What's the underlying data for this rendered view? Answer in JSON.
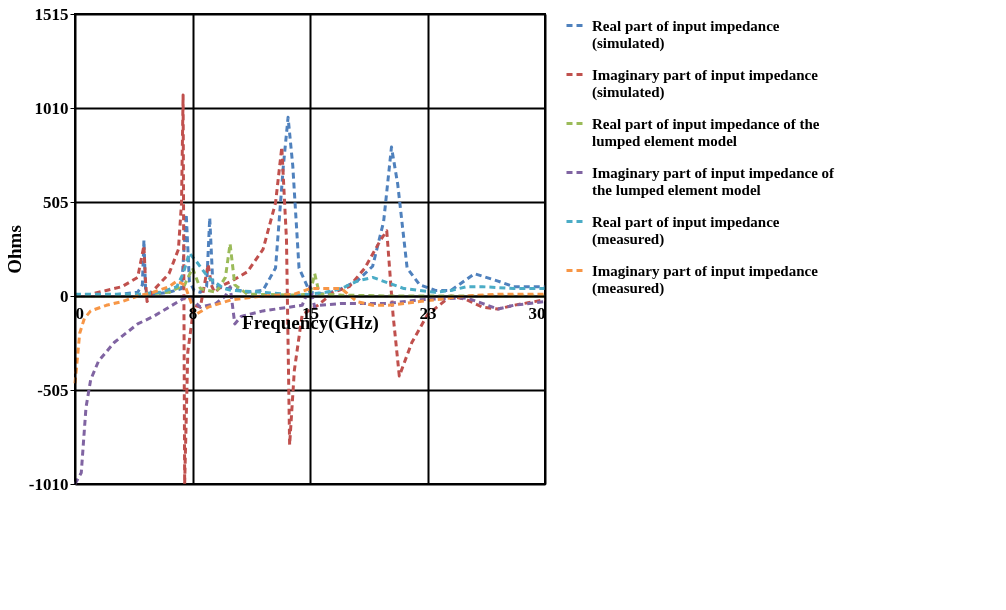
{
  "chart_data": {
    "type": "line",
    "xlabel": "Frequency(GHz)",
    "ylabel": "Ohms",
    "xlim": [
      0,
      30
    ],
    "xticks": [
      0,
      {
        "value": 7.5,
        "label": "8"
      },
      15,
      {
        "value": 22.5,
        "label": "23"
      },
      30
    ],
    "ylim": [
      -1010,
      1515
    ],
    "yticks": [
      -1010,
      -505,
      0,
      505,
      1010,
      1515
    ],
    "grid": true,
    "legend": "right",
    "line_style": "dashed",
    "marker": "none",
    "series": [
      {
        "name": "Real part of input impedance (simulated)",
        "color": "#4f81bd",
        "x": [
          0,
          2,
          4,
          4.3,
          4.4,
          4.5,
          5,
          6,
          6.8,
          7.1,
          7.3,
          7.6,
          8,
          8.4,
          8.6,
          8.8,
          9.5,
          10,
          11,
          12,
          12.8,
          13.3,
          13.6,
          13.9,
          14.3,
          15,
          16,
          17,
          18,
          19,
          19.7,
          20.2,
          20.6,
          21.2,
          22,
          23,
          24,
          25.5,
          27,
          28,
          30
        ],
        "values": [
          0,
          2,
          20,
          60,
          300,
          40,
          10,
          20,
          40,
          440,
          80,
          30,
          20,
          50,
          420,
          60,
          40,
          40,
          20,
          30,
          150,
          700,
          960,
          700,
          150,
          20,
          10,
          40,
          80,
          160,
          400,
          800,
          600,
          150,
          60,
          30,
          30,
          120,
          80,
          50,
          50
        ]
      },
      {
        "name": "Imaginary part of input impedance (simulated)",
        "color": "#c0504d",
        "x": [
          0,
          1,
          2,
          3,
          4,
          4.4,
          4.5,
          4.6,
          5,
          6,
          6.6,
          6.8,
          6.9,
          7.0,
          7.2,
          7.6,
          8,
          8.5,
          8.7,
          8.9,
          9.5,
          10,
          11,
          12,
          12.8,
          13.2,
          13.5,
          13.7,
          14,
          14.5,
          15.5,
          16.5,
          17.5,
          18.5,
          19.5,
          19.9,
          20.3,
          20.7,
          21.5,
          22.5,
          24,
          25,
          26,
          27,
          28,
          30
        ],
        "values": [
          0,
          10,
          30,
          50,
          100,
          270,
          80,
          -30,
          30,
          120,
          250,
          500,
          1080,
          -1010,
          -300,
          -50,
          -60,
          170,
          60,
          20,
          60,
          80,
          130,
          250,
          500,
          800,
          300,
          -800,
          -400,
          -100,
          -50,
          20,
          50,
          150,
          300,
          350,
          -100,
          -430,
          -250,
          -100,
          0,
          -20,
          -60,
          -70,
          -50,
          -20
        ]
      },
      {
        "name": "Real part of input impedance of the lumped element model",
        "color": "#9bbb59",
        "x": [
          0,
          3,
          6,
          7,
          7.5,
          8,
          9,
          9.6,
          9.9,
          10.2,
          11,
          14,
          15,
          15.3,
          15.6,
          17,
          20,
          25,
          30
        ],
        "values": [
          0,
          0,
          20,
          60,
          150,
          40,
          20,
          100,
          280,
          60,
          10,
          5,
          10,
          120,
          10,
          5,
          0,
          0,
          0
        ]
      },
      {
        "name": "Imaginary part of input impedance of the lumped element model",
        "color": "#8064a2",
        "x": [
          0,
          0.4,
          0.7,
          1,
          1.5,
          2.5,
          4,
          5,
          6,
          7.2,
          7.6,
          8,
          9,
          9.6,
          9.9,
          10.2,
          10.6,
          12,
          14.5,
          15,
          15.3,
          15.6,
          17,
          20,
          22,
          25,
          26,
          27,
          28,
          30
        ],
        "values": [
          -1010,
          -950,
          -600,
          -450,
          -350,
          -250,
          -150,
          -110,
          -60,
          0,
          -30,
          -60,
          -40,
          0,
          50,
          -150,
          -110,
          -80,
          -50,
          50,
          -60,
          -50,
          -40,
          -40,
          -20,
          -10,
          -40,
          -70,
          -50,
          -30
        ]
      },
      {
        "name": "Real part of input impedance (measured)",
        "color": "#4bacc6",
        "x": [
          0,
          2,
          4,
          5.5,
          6.5,
          6.9,
          7.3,
          7.8,
          8.5,
          9.5,
          10,
          12,
          14,
          15,
          16,
          17,
          18,
          19,
          20,
          21,
          22,
          23,
          24,
          25,
          26,
          28,
          30
        ],
        "values": [
          10,
          10,
          10,
          20,
          50,
          120,
          230,
          180,
          100,
          40,
          30,
          20,
          5,
          10,
          20,
          40,
          80,
          100,
          70,
          40,
          30,
          20,
          30,
          50,
          50,
          40,
          40
        ]
      },
      {
        "name": "Imaginary part of input impedance (measured)",
        "color": "#f79646",
        "x": [
          0,
          0.3,
          0.6,
          1,
          2,
          3,
          4,
          5,
          6,
          6.5,
          7,
          7.7,
          8.5,
          10,
          12,
          14,
          15,
          16,
          17,
          18,
          19,
          20,
          22,
          24,
          25,
          27,
          30
        ],
        "values": [
          -470,
          -200,
          -120,
          -80,
          -50,
          -30,
          0,
          20,
          50,
          80,
          60,
          -100,
          -60,
          -20,
          0,
          10,
          40,
          40,
          40,
          -30,
          -50,
          -50,
          -30,
          -10,
          0,
          10,
          10
        ]
      }
    ]
  }
}
